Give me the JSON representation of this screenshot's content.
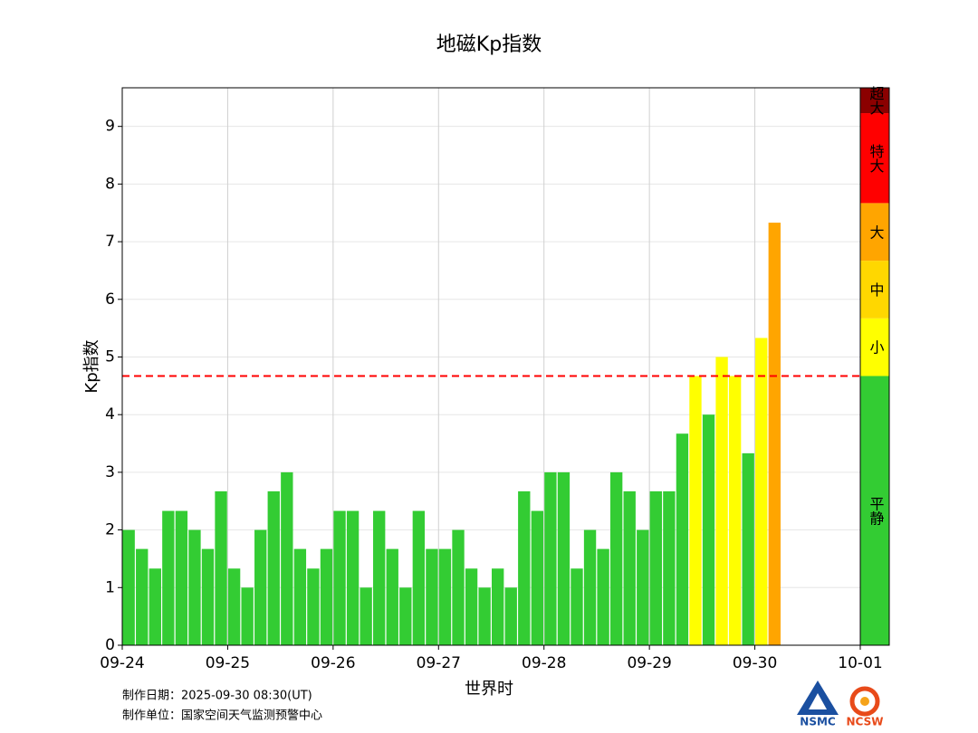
{
  "chart_data": {
    "type": "bar",
    "title": "地磁Kp指数",
    "x_label": "世界时",
    "y_label": "Kp指数",
    "x": [
      0,
      0.125,
      0.25,
      0.375,
      0.5,
      0.625,
      0.75,
      0.875,
      1,
      1.125,
      1.25,
      1.375,
      1.5,
      1.625,
      1.75,
      1.875,
      2,
      2.125,
      2.25,
      2.375,
      2.5,
      2.625,
      2.75,
      2.875,
      3,
      3.125,
      3.25,
      3.375,
      3.5,
      3.625,
      3.75,
      3.875,
      4,
      4.125,
      4.25,
      4.375,
      4.5,
      4.625,
      4.75,
      4.875,
      5,
      5.125,
      5.25,
      5.375,
      5.5,
      5.625,
      5.75,
      5.875,
      6,
      6.125
    ],
    "values": [
      2,
      1.67,
      1.33,
      2.33,
      2.33,
      2,
      1.67,
      2.67,
      1.33,
      1,
      2,
      2.67,
      3,
      1.67,
      1.33,
      1.67,
      2.33,
      2.33,
      1,
      2.33,
      1.67,
      1,
      2.33,
      1.67,
      1.67,
      2,
      1.33,
      1,
      1.33,
      1,
      2.67,
      2.33,
      3,
      3,
      1.33,
      2,
      1.67,
      3,
      2.67,
      2,
      2.67,
      2.67,
      3.67,
      4.67,
      4,
      5,
      4.67,
      3.33,
      5.33,
      7.33
    ],
    "colors": [
      "#33cc33",
      "#33cc33",
      "#33cc33",
      "#33cc33",
      "#33cc33",
      "#33cc33",
      "#33cc33",
      "#33cc33",
      "#33cc33",
      "#33cc33",
      "#33cc33",
      "#33cc33",
      "#33cc33",
      "#33cc33",
      "#33cc33",
      "#33cc33",
      "#33cc33",
      "#33cc33",
      "#33cc33",
      "#33cc33",
      "#33cc33",
      "#33cc33",
      "#33cc33",
      "#33cc33",
      "#33cc33",
      "#33cc33",
      "#33cc33",
      "#33cc33",
      "#33cc33",
      "#33cc33",
      "#33cc33",
      "#33cc33",
      "#33cc33",
      "#33cc33",
      "#33cc33",
      "#33cc33",
      "#33cc33",
      "#33cc33",
      "#33cc33",
      "#33cc33",
      "#33cc33",
      "#33cc33",
      "#33cc33",
      "#ffff00",
      "#33cc33",
      "#ffff00",
      "#ffff00",
      "#33cc33",
      "#ffff00",
      "#ffa500"
    ],
    "xlim": [
      0,
      7
    ],
    "xticks": [
      {
        "value": 0,
        "label": "09-24"
      },
      {
        "value": 1,
        "label": "09-25"
      },
      {
        "value": 2,
        "label": "09-26"
      },
      {
        "value": 3,
        "label": "09-27"
      },
      {
        "value": 4,
        "label": "09-28"
      },
      {
        "value": 5,
        "label": "09-29"
      },
      {
        "value": 6,
        "label": "09-30"
      },
      {
        "value": 7,
        "label": "10-01"
      }
    ],
    "ylim": [
      0,
      9.67
    ],
    "yticks": [
      0,
      1,
      2,
      3,
      4,
      5,
      6,
      7,
      8,
      9
    ],
    "grid": true,
    "threshold": {
      "value": 4.67,
      "color": "#ff0000"
    },
    "levels": [
      {
        "name": "平静",
        "range": [
          0,
          4.67
        ],
        "color": "#33cc33"
      },
      {
        "name": "小",
        "range": [
          4.67,
          5.67
        ],
        "color": "#ffff00"
      },
      {
        "name": "中",
        "range": [
          5.67,
          6.67
        ],
        "color": "#ffd700"
      },
      {
        "name": "大",
        "range": [
          6.67,
          7.67
        ],
        "color": "#ffa500"
      },
      {
        "name": "特大",
        "range": [
          7.67,
          9.23
        ],
        "color": "#ff0000"
      },
      {
        "name": "超大",
        "range": [
          9.23,
          9.67
        ],
        "color": "#8b0000"
      }
    ]
  },
  "footer": {
    "date_line": "制作日期：2025-09-30 08:30(UT)",
    "unit_line": "制作单位：国家空间天气监测预警中心"
  },
  "logos": [
    "NSMC",
    "NCSW"
  ]
}
